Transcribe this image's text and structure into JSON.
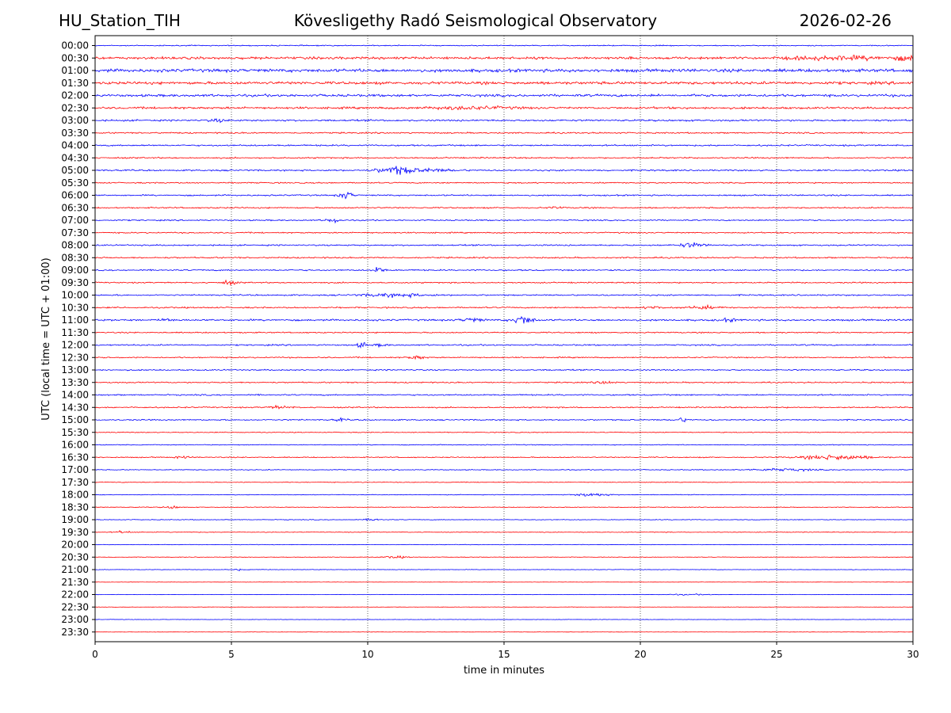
{
  "header": {
    "station": "HU_Station_TIH",
    "title": "Kövesligethy Radó Seismological Observatory",
    "date": "2026-02-26"
  },
  "chart_data": {
    "type": "line",
    "title": "Kövesligethy Radó Seismological Observatory",
    "xlabel": "time in minutes",
    "ylabel": "UTC (local time = UTC + 01:00)",
    "xlim": [
      0,
      30
    ],
    "x_ticks": [
      0,
      5,
      10,
      15,
      20,
      25,
      30
    ],
    "grid": "vertical dotted lines at x ticks",
    "colors": [
      "#0000ff",
      "#ff0000"
    ],
    "rows": [
      {
        "label": "00:00",
        "amp": 0.15,
        "events": []
      },
      {
        "label": "00:30",
        "amp": 0.35,
        "events": [
          {
            "t": 27.5,
            "a": 0.45,
            "d": 2.0
          },
          {
            "t": 29.8,
            "a": 0.5,
            "d": 0.4
          }
        ]
      },
      {
        "label": "01:00",
        "amp": 0.45,
        "events": []
      },
      {
        "label": "01:30",
        "amp": 0.4,
        "events": []
      },
      {
        "label": "02:00",
        "amp": 0.35,
        "events": []
      },
      {
        "label": "02:30",
        "amp": 0.3,
        "events": [
          {
            "t": 13.8,
            "a": 0.35,
            "d": 1.5
          }
        ]
      },
      {
        "label": "03:00",
        "amp": 0.25,
        "events": [
          {
            "t": 4.5,
            "a": 0.4,
            "d": 0.3
          }
        ]
      },
      {
        "label": "03:30",
        "amp": 0.2,
        "events": []
      },
      {
        "label": "04:00",
        "amp": 0.22,
        "events": []
      },
      {
        "label": "04:30",
        "amp": 0.2,
        "events": []
      },
      {
        "label": "05:00",
        "amp": 0.22,
        "events": [
          {
            "t": 11.0,
            "a": 1.0,
            "d": 0.6
          },
          {
            "t": 12.0,
            "a": 0.4,
            "d": 1.2
          }
        ]
      },
      {
        "label": "05:30",
        "amp": 0.18,
        "events": []
      },
      {
        "label": "06:00",
        "amp": 0.2,
        "events": [
          {
            "t": 9.2,
            "a": 1.0,
            "d": 0.25
          }
        ]
      },
      {
        "label": "06:30",
        "amp": 0.2,
        "events": [
          {
            "t": 16.9,
            "a": 0.4,
            "d": 0.2
          }
        ]
      },
      {
        "label": "07:00",
        "amp": 0.18,
        "events": [
          {
            "t": 8.7,
            "a": 0.7,
            "d": 0.25
          }
        ]
      },
      {
        "label": "07:30",
        "amp": 0.18,
        "events": []
      },
      {
        "label": "08:00",
        "amp": 0.2,
        "events": [
          {
            "t": 21.9,
            "a": 0.6,
            "d": 0.5
          }
        ]
      },
      {
        "label": "08:30",
        "amp": 0.2,
        "events": []
      },
      {
        "label": "09:00",
        "amp": 0.2,
        "events": [
          {
            "t": 10.4,
            "a": 0.9,
            "d": 0.2
          }
        ]
      },
      {
        "label": "09:30",
        "amp": 0.18,
        "events": [
          {
            "t": 4.9,
            "a": 0.5,
            "d": 0.3
          }
        ]
      },
      {
        "label": "10:00",
        "amp": 0.2,
        "events": [
          {
            "t": 11.0,
            "a": 0.45,
            "d": 1.2
          }
        ]
      },
      {
        "label": "10:30",
        "amp": 0.2,
        "events": [
          {
            "t": 20.5,
            "a": 0.4,
            "d": 0.3
          },
          {
            "t": 22.3,
            "a": 0.4,
            "d": 0.6
          }
        ]
      },
      {
        "label": "11:00",
        "amp": 0.25,
        "events": [
          {
            "t": 2.7,
            "a": 0.6,
            "d": 0.2
          },
          {
            "t": 15.7,
            "a": 1.3,
            "d": 0.35
          },
          {
            "t": 13.8,
            "a": 0.5,
            "d": 0.4
          },
          {
            "t": 23.2,
            "a": 0.4,
            "d": 0.3
          }
        ]
      },
      {
        "label": "11:30",
        "amp": 0.18,
        "events": []
      },
      {
        "label": "12:00",
        "amp": 0.2,
        "events": [
          {
            "t": 9.8,
            "a": 0.7,
            "d": 0.2
          },
          {
            "t": 10.5,
            "a": 0.4,
            "d": 0.2
          }
        ]
      },
      {
        "label": "12:30",
        "amp": 0.18,
        "events": [
          {
            "t": 11.8,
            "a": 0.5,
            "d": 0.3
          }
        ]
      },
      {
        "label": "13:00",
        "amp": 0.18,
        "events": []
      },
      {
        "label": "13:30",
        "amp": 0.18,
        "events": [
          {
            "t": 18.7,
            "a": 0.45,
            "d": 0.3
          }
        ]
      },
      {
        "label": "14:00",
        "amp": 0.2,
        "events": []
      },
      {
        "label": "14:30",
        "amp": 0.18,
        "events": [
          {
            "t": 6.8,
            "a": 0.4,
            "d": 0.4
          }
        ]
      },
      {
        "label": "15:00",
        "amp": 0.18,
        "events": [
          {
            "t": 9.0,
            "a": 0.45,
            "d": 0.2
          },
          {
            "t": 21.5,
            "a": 0.5,
            "d": 0.3
          }
        ]
      },
      {
        "label": "15:30",
        "amp": 0.12,
        "events": []
      },
      {
        "label": "16:00",
        "amp": 0.12,
        "events": []
      },
      {
        "label": "16:30",
        "amp": 0.15,
        "events": [
          {
            "t": 27.2,
            "a": 0.7,
            "d": 1.2
          },
          {
            "t": 3.2,
            "a": 0.3,
            "d": 0.3
          }
        ]
      },
      {
        "label": "17:00",
        "amp": 0.12,
        "events": [
          {
            "t": 25.2,
            "a": 0.35,
            "d": 1.2
          }
        ]
      },
      {
        "label": "17:30",
        "amp": 0.1,
        "events": []
      },
      {
        "label": "18:00",
        "amp": 0.1,
        "events": [
          {
            "t": 18.2,
            "a": 0.5,
            "d": 0.6
          }
        ]
      },
      {
        "label": "18:30",
        "amp": 0.1,
        "events": [
          {
            "t": 2.8,
            "a": 0.4,
            "d": 0.3
          }
        ]
      },
      {
        "label": "19:00",
        "amp": 0.1,
        "events": [
          {
            "t": 10.2,
            "a": 0.3,
            "d": 0.3
          }
        ]
      },
      {
        "label": "19:30",
        "amp": 0.1,
        "events": [
          {
            "t": 1.0,
            "a": 0.35,
            "d": 0.3
          }
        ]
      },
      {
        "label": "20:00",
        "amp": 0.08,
        "events": []
      },
      {
        "label": "20:30",
        "amp": 0.08,
        "events": [
          {
            "t": 11.0,
            "a": 0.3,
            "d": 0.5
          }
        ]
      },
      {
        "label": "21:00",
        "amp": 0.08,
        "events": [
          {
            "t": 5.3,
            "a": 0.35,
            "d": 0.1
          }
        ]
      },
      {
        "label": "21:30",
        "amp": 0.05,
        "events": []
      },
      {
        "label": "22:00",
        "amp": 0.06,
        "events": [
          {
            "t": 21.8,
            "a": 0.15,
            "d": 0.8
          }
        ]
      },
      {
        "label": "22:30",
        "amp": 0.05,
        "events": []
      },
      {
        "label": "23:00",
        "amp": 0.06,
        "events": []
      },
      {
        "label": "23:30",
        "amp": 0.05,
        "events": []
      }
    ]
  }
}
